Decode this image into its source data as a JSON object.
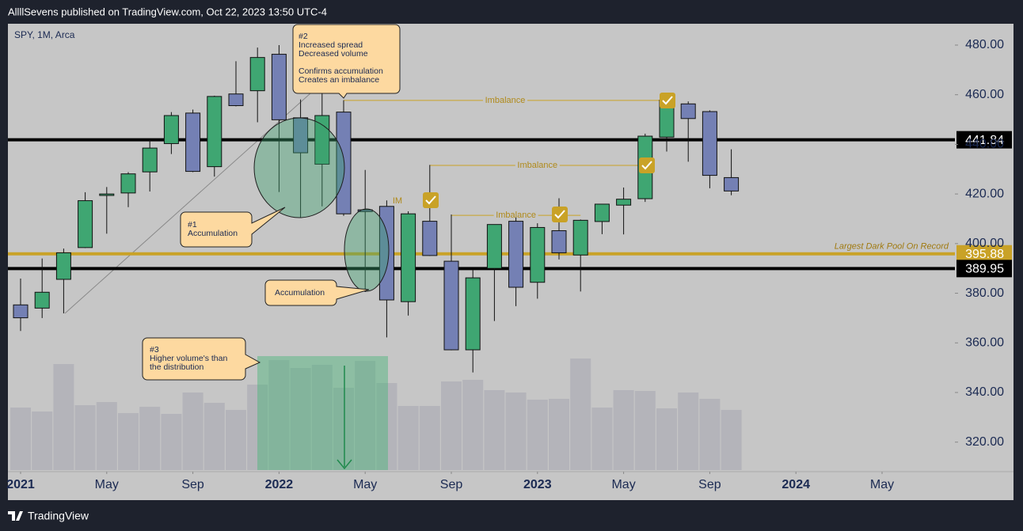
{
  "header": {
    "title": "AllllSevens published on TradingView.com, Oct 22, 2023 13:50 UTC-4"
  },
  "footer": {
    "brand": "TradingView"
  },
  "chart_data": {
    "type": "candlestick",
    "symbol": "SPY, 1M, Arca",
    "x": [
      "2021-01",
      "2021-02",
      "2021-03",
      "2021-04",
      "2021-05",
      "2021-06",
      "2021-07",
      "2021-08",
      "2021-09",
      "2021-10",
      "2021-11",
      "2021-12",
      "2022-01",
      "2022-02",
      "2022-03",
      "2022-04",
      "2022-05",
      "2022-06",
      "2022-07",
      "2022-08",
      "2022-09",
      "2022-10",
      "2022-11",
      "2022-12",
      "2023-01",
      "2023-02",
      "2023-03",
      "2023-04",
      "2023-05",
      "2023-06",
      "2023-07",
      "2023-08",
      "2023-09",
      "2023-10"
    ],
    "open": [
      375.3,
      374.0,
      385.6,
      398.4,
      419.4,
      420.4,
      428.9,
      440.3,
      452.6,
      431.0,
      460.3,
      461.6,
      476.3,
      450.7,
      432.0,
      453.0,
      413.6,
      415.0,
      376.6,
      409.0,
      392.9,
      357.2,
      390.0,
      409.0,
      384.4,
      405.2,
      395.4,
      408.9,
      415.5,
      418.1,
      442.9,
      456.3,
      453.2,
      426.6
    ],
    "high": [
      385.9,
      394.0,
      398.0,
      420.7,
      422.8,
      428.8,
      441.8,
      453.0,
      454.0,
      459.6,
      473.5,
      479.0,
      480.0,
      458.1,
      462.0,
      457.8,
      429.7,
      417.4,
      413.0,
      431.7,
      411.7,
      389.5,
      407.7,
      410.5,
      408.2,
      418.3,
      409.7,
      415.9,
      422.6,
      444.3,
      459.4,
      457.3,
      453.7,
      438.0
    ],
    "low": [
      364.8,
      370.0,
      371.9,
      398.2,
      404.0,
      414.7,
      421.0,
      436.1,
      428.8,
      427.0,
      455.3,
      448.9,
      420.8,
      410.6,
      415.0,
      411.2,
      380.5,
      362.2,
      371.0,
      395.0,
      357.0,
      348.1,
      368.8,
      374.8,
      377.8,
      393.6,
      380.7,
      403.8,
      403.7,
      416.8,
      437.1,
      433.0,
      422.3,
      419.5
    ],
    "close": [
      370.1,
      380.4,
      396.3,
      417.3,
      420.0,
      428.1,
      438.5,
      451.6,
      429.1,
      459.3,
      455.6,
      475.0,
      449.9,
      436.6,
      451.6,
      412.0,
      412.9,
      377.3,
      412.0,
      395.2,
      357.2,
      386.2,
      407.7,
      382.4,
      406.5,
      396.3,
      409.4,
      415.9,
      417.9,
      443.3,
      457.8,
      450.4,
      427.5,
      421.2
    ],
    "volume": [
      1185,
      1110,
      2010,
      1230,
      1290,
      1080,
      1200,
      1065,
      1470,
      1275,
      1140,
      1620,
      2085,
      1935,
      1995,
      1560,
      2070,
      1650,
      1215,
      1215,
      1680,
      1710,
      1515,
      1470,
      1335,
      1350,
      2115,
      1185,
      1515,
      1500,
      1170,
      1470,
      1350,
      1140
    ],
    "up_color": "#3fa672",
    "down_color": "#7480b4",
    "volume_color": "#b4b4ba",
    "ylim": [
      308.1,
      488.6
    ],
    "yticks": [
      {
        "value": 320,
        "label": "320.00"
      },
      {
        "value": 340,
        "label": "340.00"
      },
      {
        "value": 360,
        "label": "360.00"
      },
      {
        "value": 380,
        "label": "380.00"
      },
      {
        "value": 400,
        "label": "400.00"
      },
      {
        "value": 420,
        "label": "420.00"
      },
      {
        "value": 440,
        "label": "440.00"
      },
      {
        "value": 460,
        "label": "460.00"
      },
      {
        "value": 480,
        "label": "480.00"
      }
    ],
    "xticks": [
      {
        "value": "2021-01",
        "label": "2021"
      },
      {
        "value": "2021-05",
        "label": "May"
      },
      {
        "value": "2021-09",
        "label": "Sep"
      },
      {
        "value": "2022-01",
        "label": "2022"
      },
      {
        "value": "2022-05",
        "label": "May"
      },
      {
        "value": "2022-09",
        "label": "Sep"
      },
      {
        "value": "2023-01",
        "label": "2023"
      },
      {
        "value": "2023-05",
        "label": "May"
      },
      {
        "value": "2023-09",
        "label": "Sep"
      },
      {
        "value": "2024-01",
        "label": "2024"
      },
      {
        "value": "2024-05",
        "label": "May"
      }
    ],
    "levels": [
      {
        "value": 441.84,
        "color": "#000000"
      },
      {
        "value": 395.88,
        "color": "#c9a227",
        "text": "Largest Dark Pool On Record"
      },
      {
        "value": 389.95,
        "color": "#000000"
      }
    ],
    "imbalances": [
      {
        "text": "Imbalance",
        "value": 457.7,
        "from": "2022-04",
        "to": "2023-07"
      },
      {
        "text": "Imbalance",
        "value": 431.5,
        "from": "2022-08",
        "to": "2023-06"
      },
      {
        "text": "Imbalance",
        "value": 411.4,
        "from": "2022-09",
        "to": "2023-03"
      },
      {
        "text": "IM",
        "value": 417.2,
        "from": "2022-06",
        "to": "2022-07"
      }
    ],
    "annotations": [
      {
        "lines": [
          "#2",
          "Increased spread",
          "Decreased volume",
          "Confirms accumulation",
          "Creates an imbalance"
        ]
      },
      {
        "lines": [
          "#1",
          "Accumulation"
        ]
      },
      {
        "lines": [
          "Accumulation"
        ]
      },
      {
        "lines": [
          "#3",
          "Higher volume's than",
          "the distribution"
        ]
      }
    ]
  }
}
